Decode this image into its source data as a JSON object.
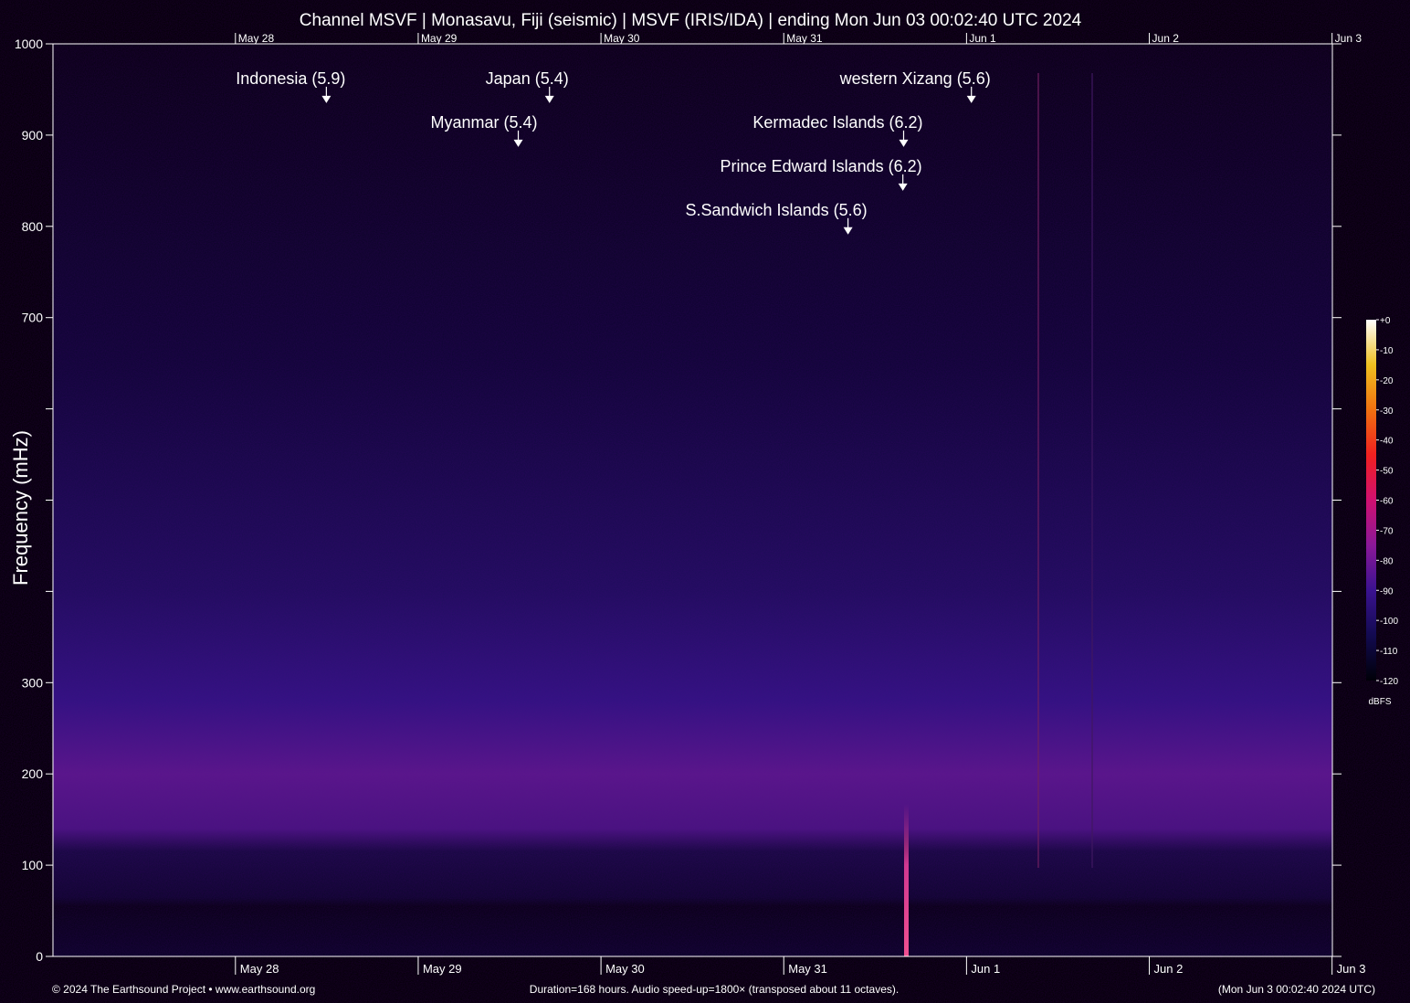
{
  "chart_data": {
    "type": "spectrogram",
    "title": "Channel MSVF | Monasavu, Fiji (seismic) | MSVF (IRIS/IDA) | ending Mon Jun 03 00:02:40 UTC 2024",
    "ylabel": "Frequency (mHz)",
    "xlim": [
      0,
      168
    ],
    "xticks": [
      {
        "value": 23.96,
        "label": "May 28"
      },
      {
        "value": 47.96,
        "label": "May 29"
      },
      {
        "value": 71.96,
        "label": "May 30"
      },
      {
        "value": 95.96,
        "label": "May 31"
      },
      {
        "value": 119.96,
        "label": "Jun  1"
      },
      {
        "value": 143.96,
        "label": "Jun  2"
      },
      {
        "value": 167.96,
        "label": "Jun  3"
      }
    ],
    "ylim": [
      0,
      1000
    ],
    "yticks": [
      0,
      100,
      200,
      300,
      700,
      800,
      900,
      1000
    ],
    "yticks_minor": [
      400,
      500,
      600
    ],
    "annotations": [
      {
        "text": "Indonesia (5.9)",
        "x": 35.9,
        "y": 935
      },
      {
        "text": "Japan (5.4)",
        "x": 65.2,
        "y": 935
      },
      {
        "text": "Myanmar (5.4)",
        "x": 61.1,
        "y": 887
      },
      {
        "text": "western Xizang (5.6)",
        "x": 120.6,
        "y": 935
      },
      {
        "text": "Kermadec Islands (6.2)",
        "x": 111.7,
        "y": 887
      },
      {
        "text": "Prince Edward Islands (6.2)",
        "x": 111.6,
        "y": 839
      },
      {
        "text": "S.Sandwich Islands (5.6)",
        "x": 104.4,
        "y": 791
      }
    ],
    "colorbar": {
      "label": "dBFS",
      "lim": [
        -120,
        0
      ],
      "ticks": [
        {
          "value": 0,
          "label": "+0"
        },
        -10,
        -20,
        -30,
        -40,
        -50,
        -60,
        -70,
        -80,
        -90,
        -100,
        -110,
        -120
      ],
      "colors": [
        "#000008",
        "#120a50",
        "#3a1290",
        "#8a1898",
        "#d01070",
        "#f02020",
        "#f07010",
        "#f0c020",
        "#ffffff"
      ]
    },
    "footer_left": "© 2024 The Earthsound Project • www.earthsound.org",
    "footer_center": "Duration=168 hours. Audio speed-up=1800× (transposed about 11 octaves).",
    "footer_right": "(Mon Jun  3 00:02:40 2024 UTC)"
  }
}
